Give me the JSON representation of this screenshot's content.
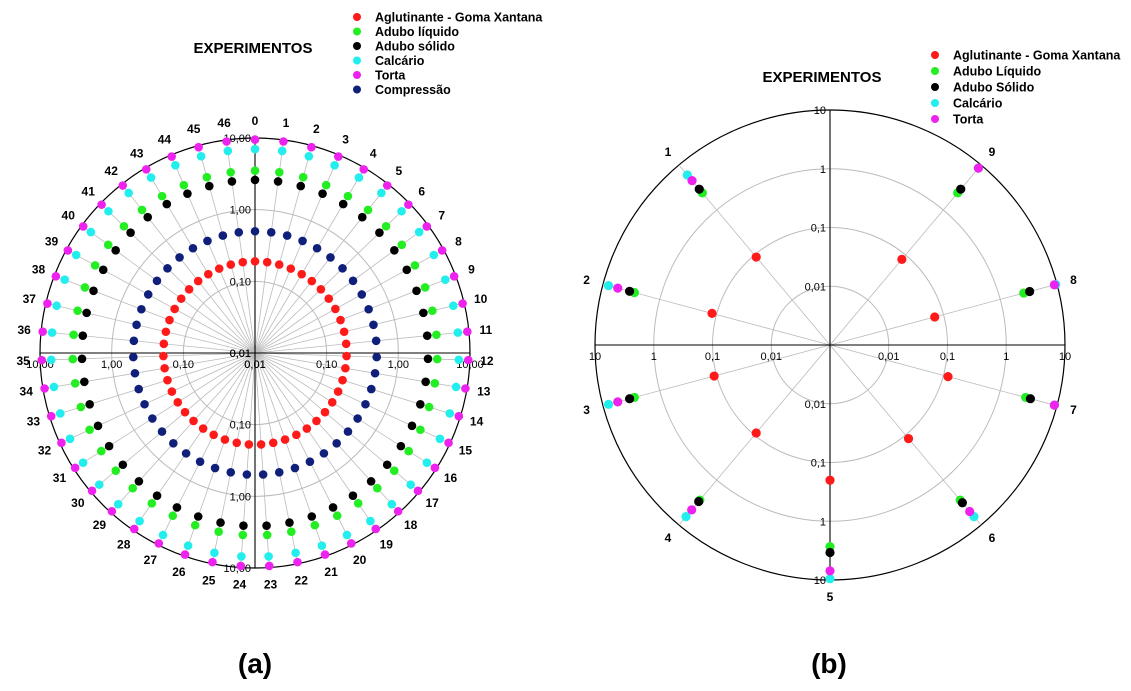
{
  "colors": {
    "Aglutinante": "#ff1a1a",
    "Adubo_liquido": "#22ee22",
    "Adubo_solido": "#000000",
    "Calcario": "#22eeee",
    "Torta": "#ee22ee",
    "Compressao": "#0f1f7a",
    "grid": "#bbbbbb",
    "axis": "#000000"
  },
  "chart_data": [
    {
      "type": "polar-scatter",
      "title": "EXPERIMENTOS",
      "panel_label": "(a)",
      "radial_scale": "log",
      "radial_range": [
        0.01,
        10
      ],
      "radial_ticks": [
        "0,01",
        "0,10",
        "1,00",
        "10,00"
      ],
      "angular_categories": [
        "0",
        "1",
        "2",
        "3",
        "4",
        "5",
        "6",
        "7",
        "8",
        "9",
        "10",
        "11",
        "12",
        "13",
        "14",
        "15",
        "16",
        "17",
        "18",
        "19",
        "20",
        "21",
        "22",
        "23",
        "24",
        "25",
        "26",
        "27",
        "28",
        "29",
        "30",
        "31",
        "32",
        "33",
        "34",
        "35",
        "36",
        "37",
        "38",
        "39",
        "40",
        "41",
        "42",
        "43",
        "44",
        "45",
        "46"
      ],
      "legend_position": "top-right",
      "series": [
        {
          "name": "Aglutinante - Goma Xantana",
          "color_key": "Aglutinante",
          "values": [
            0.19,
            0.19,
            0.19,
            0.19,
            0.19,
            0.19,
            0.19,
            0.19,
            0.19,
            0.19,
            0.19,
            0.19,
            0.19,
            0.19,
            0.19,
            0.19,
            0.19,
            0.19,
            0.19,
            0.19,
            0.19,
            0.19,
            0.19,
            0.19,
            0.19,
            0.19,
            0.19,
            0.19,
            0.19,
            0.19,
            0.19,
            0.19,
            0.19,
            0.19,
            0.19,
            0.19,
            0.19,
            0.19,
            0.19,
            0.19,
            0.19,
            0.19,
            0.19,
            0.19,
            0.19,
            0.19,
            0.19
          ]
        },
        {
          "name": "Adubo líquido",
          "color_key": "Adubo_liquido",
          "values": [
            3.5,
            3.5,
            3.5,
            3.5,
            3.5,
            3.5,
            3.5,
            3.5,
            3.5,
            3.5,
            3.5,
            3.5,
            3.5,
            3.5,
            3.5,
            3.5,
            3.5,
            3.5,
            3.5,
            3.5,
            3.5,
            3.5,
            3.5,
            3.5,
            3.5,
            3.5,
            3.5,
            3.5,
            3.5,
            3.5,
            3.5,
            3.5,
            3.5,
            3.5,
            3.5,
            3.5,
            3.5,
            3.5,
            3.5,
            3.5,
            3.5,
            3.5,
            3.5,
            3.5,
            3.5,
            3.5,
            3.5
          ]
        },
        {
          "name": "Adubo sólido",
          "color_key": "Adubo_solido",
          "values": [
            2.6,
            2.6,
            2.6,
            2.6,
            2.6,
            2.6,
            2.6,
            2.6,
            2.6,
            2.6,
            2.6,
            2.6,
            2.6,
            2.6,
            2.6,
            2.6,
            2.6,
            2.6,
            2.6,
            2.6,
            2.6,
            2.6,
            2.6,
            2.6,
            2.6,
            2.6,
            2.6,
            2.6,
            2.6,
            2.6,
            2.6,
            2.6,
            2.6,
            2.6,
            2.6,
            2.6,
            2.6,
            2.6,
            2.6,
            2.6,
            2.6,
            2.6,
            2.6,
            2.6,
            2.6,
            2.6,
            2.6
          ]
        },
        {
          "name": "Calcário",
          "color_key": "Calcario",
          "values": [
            7.0,
            7.0,
            7.0,
            7.0,
            7.0,
            7.0,
            7.0,
            7.0,
            7.0,
            7.0,
            7.0,
            7.0,
            7.0,
            7.0,
            7.0,
            7.0,
            7.0,
            7.0,
            7.0,
            7.0,
            7.0,
            7.0,
            7.0,
            7.0,
            7.0,
            7.0,
            7.0,
            7.0,
            7.0,
            7.0,
            7.0,
            7.0,
            7.0,
            7.0,
            7.0,
            7.0,
            7.0,
            7.0,
            7.0,
            7.0,
            7.0,
            7.0,
            7.0,
            7.0,
            7.0,
            7.0,
            7.0
          ]
        },
        {
          "name": "Torta",
          "color_key": "Torta",
          "values": [
            9.5,
            9.5,
            9.5,
            9.5,
            9.5,
            9.5,
            9.5,
            9.5,
            9.5,
            9.5,
            9.5,
            9.5,
            9.5,
            9.5,
            9.5,
            9.5,
            9.5,
            9.5,
            9.5,
            9.5,
            9.5,
            9.5,
            9.5,
            9.5,
            9.5,
            9.5,
            9.5,
            9.5,
            9.5,
            9.5,
            9.5,
            9.5,
            9.5,
            9.5,
            9.5,
            9.5,
            9.5,
            9.5,
            9.5,
            9.5,
            9.5,
            9.5,
            9.5,
            9.5,
            9.5,
            9.5,
            9.5
          ]
        },
        {
          "name": "Compressão",
          "color_key": "Compressao",
          "values": [
            0.5,
            0.5,
            0.5,
            0.5,
            0.5,
            0.5,
            0.5,
            0.5,
            0.5,
            0.5,
            0.5,
            0.5,
            0.5,
            0.5,
            0.5,
            0.5,
            0.5,
            0.5,
            0.5,
            0.5,
            0.5,
            0.5,
            0.5,
            0.5,
            0.5,
            0.5,
            0.5,
            0.5,
            0.5,
            0.5,
            0.5,
            0.5,
            0.5,
            0.5,
            0.5,
            0.5,
            0.5,
            0.5,
            0.5,
            0.5,
            0.5,
            0.5,
            0.5,
            0.5,
            0.5,
            0.5,
            0.5
          ]
        }
      ]
    },
    {
      "type": "polar-scatter",
      "title": "EXPERIMENTOS",
      "panel_label": "(b)",
      "radial_scale": "log",
      "radial_range": [
        0.001,
        10
      ],
      "radial_ticks": [
        "0,01",
        "0,1",
        "1",
        "10"
      ],
      "angular_categories": [
        "1",
        "2",
        "3",
        "4",
        "5",
        "6",
        "7",
        "8",
        "9"
      ],
      "legend_position": "top-right",
      "series": [
        {
          "name": "Aglutinante - Goma Xantana",
          "color_key": "Aglutinante",
          "values": [
            0.09,
            0.12,
            0.11,
            0.09,
            0.2,
            0.12,
            0.12,
            0.07,
            0.08
          ]
        },
        {
          "name": "Adubo Líquido",
          "color_key": "Adubo_liquido",
          "values": [
            2.4,
            2.8,
            2.8,
            2.8,
            2.7,
            2.8,
            2.8,
            2.6,
            2.4
          ]
        },
        {
          "name": "Adubo Sólido",
          "color_key": "Adubo_solido",
          "values": [
            2.9,
            3.4,
            3.4,
            3.0,
            3.4,
            3.2,
            3.4,
            3.3,
            2.9
          ]
        },
        {
          "name": "Calcário",
          "color_key": "Calcario",
          "values": [
            6.0,
            8.0,
            8.0,
            6.5,
            9.5,
            6.5,
            9.0,
            9.5,
            8.5
          ]
        },
        {
          "name": "Torta",
          "color_key": "Torta",
          "values": [
            4.5,
            5.5,
            5.5,
            4.6,
            7.0,
            5.0,
            9.0,
            9.0,
            8.5
          ]
        }
      ]
    }
  ]
}
